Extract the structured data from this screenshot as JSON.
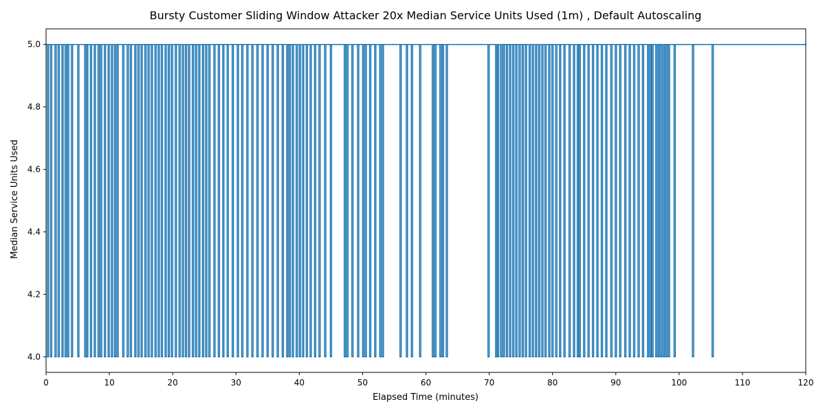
{
  "chart_data": {
    "type": "line",
    "title": "Bursty Customer Sliding Window Attacker 20x Median Service Units Used (1m) , Default Autoscaling",
    "xlabel": "Elapsed Time (minutes)",
    "ylabel": "Median Service Units Used",
    "xlim": [
      0,
      120
    ],
    "ylim": [
      3.95,
      5.05
    ],
    "x_ticks": [
      0,
      10,
      20,
      30,
      40,
      50,
      60,
      70,
      80,
      90,
      100,
      110,
      120
    ],
    "x_tick_labels": [
      "0",
      "10",
      "20",
      "30",
      "40",
      "50",
      "60",
      "70",
      "80",
      "90",
      "100",
      "110",
      "120"
    ],
    "y_ticks": [
      4.0,
      4.2,
      4.4,
      4.6,
      4.8,
      5.0
    ],
    "y_tick_labels": [
      "4.0",
      "4.2",
      "4.4",
      "4.6",
      "4.8",
      "5.0"
    ],
    "grid": false,
    "legend": "none",
    "line_color": "#1f77b4",
    "series": [
      {
        "high_value": 5.0,
        "low_value": 4.0,
        "dips_at_4_minutes": [
          0.3,
          0.8,
          1.5,
          2.0,
          2.6,
          3.1,
          3.5,
          4.1,
          5.1,
          6.2,
          6.5,
          7.1,
          7.7,
          8.3,
          8.7,
          9.3,
          9.9,
          10.4,
          10.9,
          11.3,
          12.2,
          12.9,
          13.4,
          14.1,
          14.6,
          15.1,
          15.7,
          16.2,
          16.7,
          17.3,
          17.8,
          18.3,
          18.9,
          19.4,
          19.9,
          20.5,
          21.1,
          21.6,
          22.1,
          22.6,
          23.2,
          23.7,
          24.2,
          24.8,
          25.3,
          25.8,
          26.6,
          27.3,
          28.0,
          28.7,
          29.5,
          30.3,
          31.0,
          31.8,
          32.6,
          33.4,
          34.2,
          35.0,
          35.8,
          36.6,
          37.4,
          38.1,
          38.5,
          39.0,
          39.6,
          40.1,
          40.6,
          41.2,
          41.8,
          42.5,
          43.2,
          44.1,
          45.0,
          47.2,
          47.6,
          48.4,
          49.3,
          50.1,
          50.5,
          51.2,
          52.0,
          52.8,
          53.2,
          56.0,
          57.0,
          57.8,
          59.1,
          61.1,
          61.5,
          62.3,
          62.7,
          63.3,
          69.9,
          71.1,
          71.4,
          71.9,
          72.3,
          72.8,
          73.3,
          73.8,
          74.3,
          74.8,
          75.3,
          75.8,
          76.4,
          76.9,
          77.4,
          77.9,
          78.4,
          78.9,
          79.5,
          80.0,
          80.6,
          81.2,
          81.9,
          82.7,
          83.4,
          84.0,
          84.3,
          85.0,
          85.7,
          86.4,
          87.1,
          87.8,
          88.5,
          89.3,
          90.0,
          90.7,
          91.5,
          92.2,
          92.9,
          93.6,
          94.3,
          95.1,
          95.5,
          95.8,
          96.4,
          96.8,
          97.2,
          97.6,
          98.0,
          98.4,
          99.3,
          102.2,
          105.3
        ]
      }
    ]
  }
}
